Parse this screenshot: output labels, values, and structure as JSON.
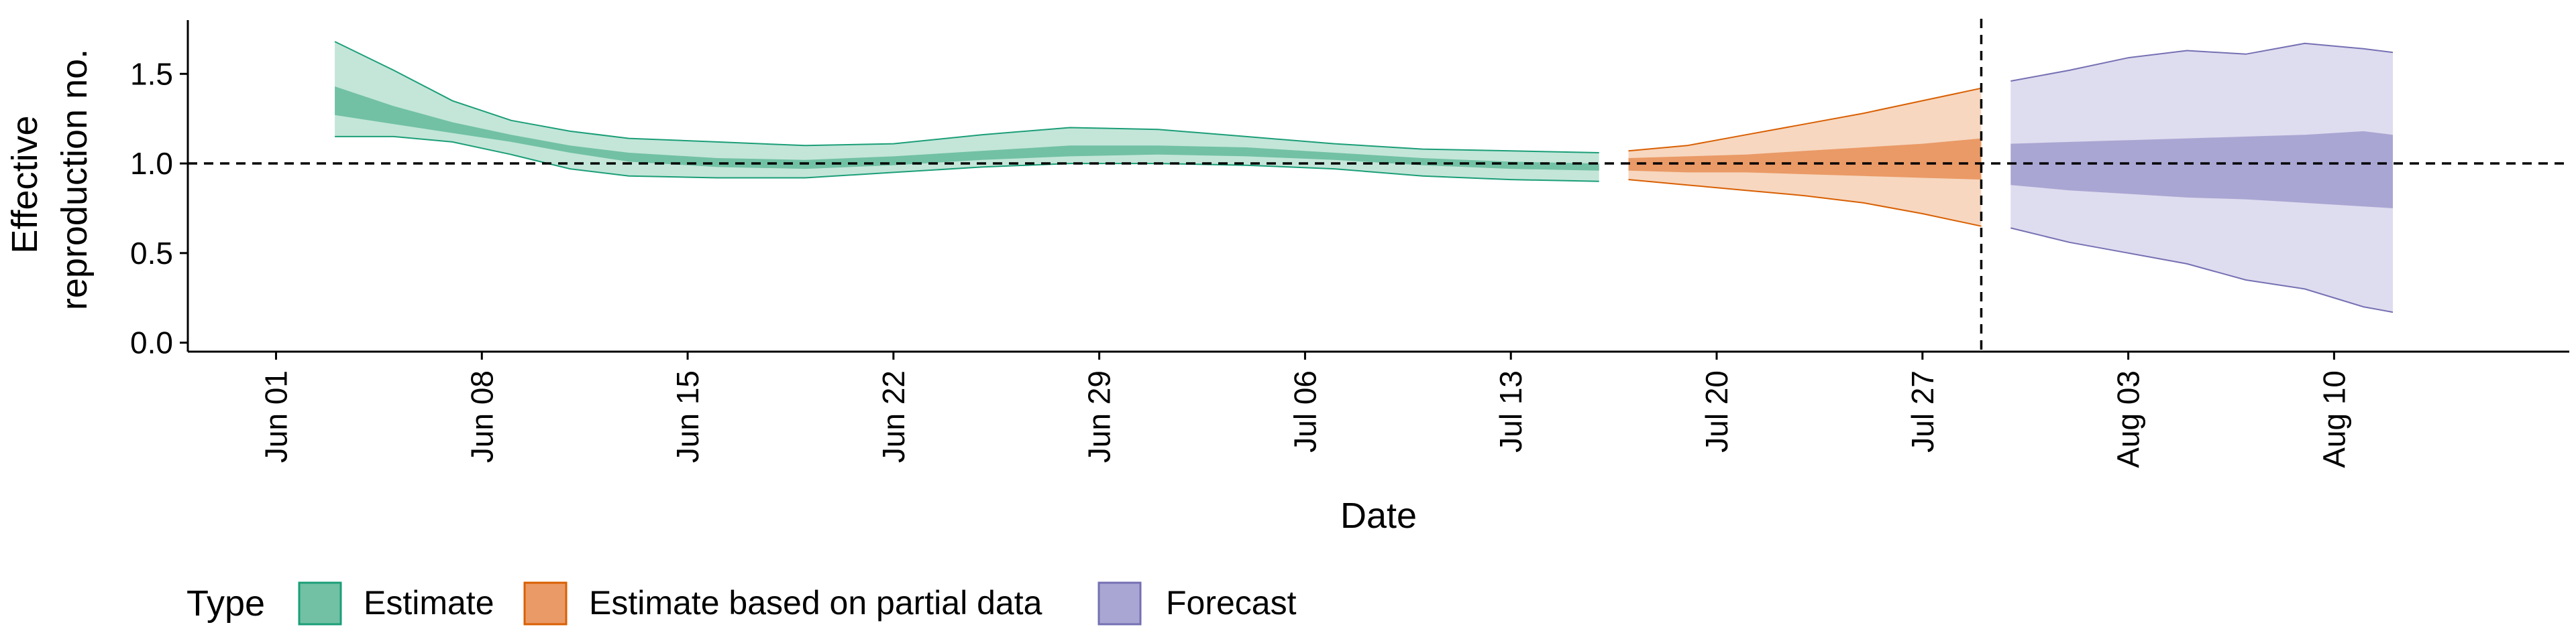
{
  "chart_data": {
    "type": "area",
    "xlabel": "Date",
    "ylabel_lines": [
      "Effective",
      "reproduction no."
    ],
    "ylim": [
      -0.05,
      1.8
    ],
    "yticks": [
      0.0,
      0.5,
      1.0,
      1.5
    ],
    "ytick_labels": [
      "0.0",
      "0.5",
      "1.0",
      "1.5"
    ],
    "x_start": "2020-05-29",
    "x_end": "2020-08-18",
    "xticks": [
      "2020-06-01",
      "2020-06-08",
      "2020-06-15",
      "2020-06-22",
      "2020-06-29",
      "2020-07-06",
      "2020-07-13",
      "2020-07-20",
      "2020-07-27",
      "2020-08-03",
      "2020-08-10"
    ],
    "xtick_labels": [
      "Jun 01",
      "Jun 08",
      "Jun 15",
      "Jun 22",
      "Jun 29",
      "Jul 06",
      "Jul 13",
      "Jul 20",
      "Jul 27",
      "Aug 03",
      "Aug 10"
    ],
    "reference_line_y": 1.0,
    "forecast_cutoff_date": "2020-07-29",
    "legend": {
      "title": "Type",
      "position": "bottom",
      "entries": [
        "Estimate",
        "Estimate based on partial data",
        "Forecast"
      ]
    },
    "colors": {
      "Estimate": {
        "outer_fill": "#c3e6d9",
        "inner_fill": "#72c1a5",
        "line": "#1b9e77"
      },
      "Estimate based on partial data": {
        "outer_fill": "#f7d7c0",
        "inner_fill": "#ea9a66",
        "line": "#d95f02"
      },
      "Forecast": {
        "outer_fill": "#dedcef",
        "inner_fill": "#aaa6d3",
        "line": "#7570b3"
      }
    },
    "series": [
      {
        "name": "Estimate",
        "x": [
          "2020-06-03",
          "2020-06-05",
          "2020-06-07",
          "2020-06-09",
          "2020-06-11",
          "2020-06-13",
          "2020-06-16",
          "2020-06-19",
          "2020-06-22",
          "2020-06-25",
          "2020-06-28",
          "2020-07-01",
          "2020-07-04",
          "2020-07-07",
          "2020-07-10",
          "2020-07-13",
          "2020-07-16"
        ],
        "lower_90": [
          1.15,
          1.15,
          1.12,
          1.05,
          0.97,
          0.93,
          0.92,
          0.92,
          0.95,
          0.98,
          1.0,
          1.0,
          0.99,
          0.97,
          0.93,
          0.91,
          0.9
        ],
        "lower_50": [
          1.27,
          1.22,
          1.17,
          1.12,
          1.06,
          1.01,
          0.98,
          0.97,
          0.99,
          1.02,
          1.04,
          1.05,
          1.04,
          1.02,
          0.99,
          0.97,
          0.96
        ],
        "upper_50": [
          1.43,
          1.32,
          1.23,
          1.16,
          1.1,
          1.06,
          1.03,
          1.02,
          1.04,
          1.07,
          1.1,
          1.1,
          1.09,
          1.06,
          1.03,
          1.01,
          1.0
        ],
        "upper_90": [
          1.68,
          1.52,
          1.35,
          1.24,
          1.18,
          1.14,
          1.12,
          1.1,
          1.11,
          1.16,
          1.2,
          1.19,
          1.15,
          1.11,
          1.08,
          1.07,
          1.06
        ]
      },
      {
        "name": "Estimate based on partial data",
        "x": [
          "2020-07-17",
          "2020-07-19",
          "2020-07-21",
          "2020-07-23",
          "2020-07-25",
          "2020-07-27",
          "2020-07-29"
        ],
        "lower_90": [
          0.91,
          0.88,
          0.85,
          0.82,
          0.78,
          0.72,
          0.65
        ],
        "lower_50": [
          0.96,
          0.95,
          0.95,
          0.94,
          0.93,
          0.92,
          0.91
        ],
        "upper_50": [
          1.03,
          1.04,
          1.05,
          1.07,
          1.09,
          1.11,
          1.14
        ],
        "upper_90": [
          1.07,
          1.1,
          1.16,
          1.22,
          1.28,
          1.35,
          1.42
        ]
      },
      {
        "name": "Forecast",
        "x": [
          "2020-07-30",
          "2020-08-01",
          "2020-08-03",
          "2020-08-05",
          "2020-08-07",
          "2020-08-09",
          "2020-08-11",
          "2020-08-12"
        ],
        "lower_90": [
          0.64,
          0.56,
          0.5,
          0.44,
          0.35,
          0.3,
          0.2,
          0.17
        ],
        "lower_50": [
          0.88,
          0.85,
          0.83,
          0.81,
          0.8,
          0.78,
          0.76,
          0.75
        ],
        "upper_50": [
          1.11,
          1.12,
          1.13,
          1.14,
          1.15,
          1.16,
          1.18,
          1.16
        ],
        "upper_90": [
          1.46,
          1.52,
          1.59,
          1.63,
          1.61,
          1.67,
          1.64,
          1.62
        ]
      }
    ]
  }
}
